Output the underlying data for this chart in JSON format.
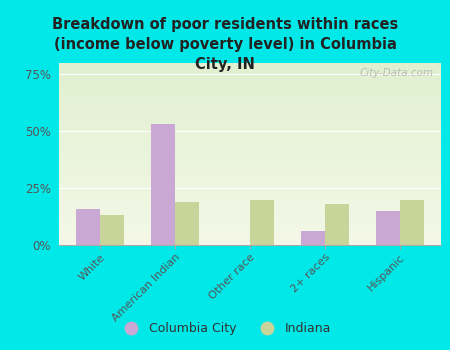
{
  "title": "Breakdown of poor residents within races\n(income below poverty level) in Columbia\nCity, IN",
  "categories": [
    "White",
    "American Indian",
    "Other race",
    "2+ races",
    "Hispanic"
  ],
  "columbia_city": [
    16,
    53,
    0,
    6,
    15
  ],
  "indiana": [
    13,
    19,
    20,
    18,
    20
  ],
  "bar_color_city": "#c9a8d4",
  "bar_color_indiana": "#c8d49a",
  "bg_color": "#00e8e8",
  "ylim": [
    0,
    80
  ],
  "yticks": [
    0,
    25,
    50,
    75
  ],
  "ytick_labels": [
    "0%",
    "25%",
    "50%",
    "75%"
  ],
  "bar_width": 0.32,
  "legend_city": "Columbia City",
  "legend_indiana": "Indiana",
  "watermark": "City-Data.com"
}
